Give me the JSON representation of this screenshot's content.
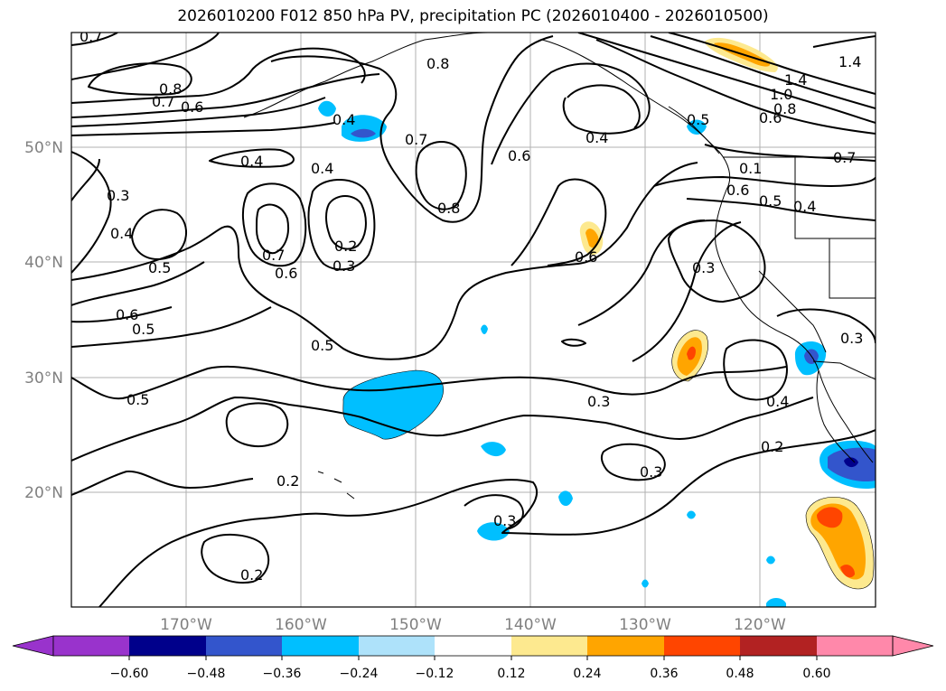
{
  "chart_data": {
    "type": "contour-map",
    "title": "2026010200 F012 850 hPa PV, precipitation PC (2026010400 - 2026010500)",
    "region": {
      "lon_range": [
        -180,
        -110
      ],
      "lat_range": [
        10,
        60
      ]
    },
    "lat_ticks": [
      "50°N",
      "40°N",
      "30°N",
      "20°N"
    ],
    "lon_ticks": [
      "170°W",
      "160°W",
      "150°W",
      "140°W",
      "130°W",
      "120°W"
    ],
    "contour_labels": [
      "0.7",
      "0.8",
      "0.7",
      "0.6",
      "0.4",
      "0.8",
      "0.7",
      "0.6",
      "0.4",
      "0.5",
      "1.4",
      "1.4",
      "1.0",
      "0.8",
      "0.6",
      "0.7",
      "0.4",
      "0.4",
      "0.3",
      "0.4",
      "0.5",
      "0.7",
      "0.6",
      "0.2",
      "0.3",
      "0.8",
      "0.6",
      "0.1",
      "0.6",
      "0.5",
      "0.4",
      "0.3",
      "0.6",
      "0.5",
      "0.5",
      "0.5",
      "0.3",
      "0.4",
      "0.2",
      "0.3",
      "0.3",
      "0.2",
      "0.2",
      "0.3"
    ],
    "colorbar": {
      "ticks": [
        "−0.60",
        "−0.48",
        "−0.36",
        "−0.24",
        "−0.12",
        "0.12",
        "0.24",
        "0.36",
        "0.48",
        "0.60"
      ],
      "colors": [
        "#9933cc",
        "#00008b",
        "#3355cc",
        "#00bfff",
        "#aee2fa",
        "#ffffff",
        "#fde98f",
        "#ffa500",
        "#ff4500",
        "#b22222",
        "#ff88aa"
      ]
    },
    "precip_anomaly_areas": [
      {
        "lon": -155,
        "lat": 51,
        "sign": "negative",
        "max_class": "-0.48"
      },
      {
        "lon": -151,
        "lat": 28,
        "sign": "negative",
        "max_class": "-0.36"
      },
      {
        "lon": -143,
        "lat": 16,
        "sign": "negative",
        "max_class": "-0.36"
      },
      {
        "lon": -116.5,
        "lat": 31,
        "sign": "negative",
        "max_class": "-0.48"
      },
      {
        "lon": -111.5,
        "lat": 22,
        "sign": "negative",
        "max_class": "-0.60"
      },
      {
        "lon": -134.5,
        "lat": 42,
        "sign": "positive",
        "max_class": "0.36"
      },
      {
        "lon": -126,
        "lat": 32,
        "sign": "positive",
        "max_class": "0.36"
      },
      {
        "lon": -120.5,
        "lat": 58,
        "sign": "positive",
        "max_class": "0.24"
      },
      {
        "lon": -112.5,
        "lat": 16,
        "sign": "positive",
        "max_class": "0.36"
      }
    ]
  }
}
